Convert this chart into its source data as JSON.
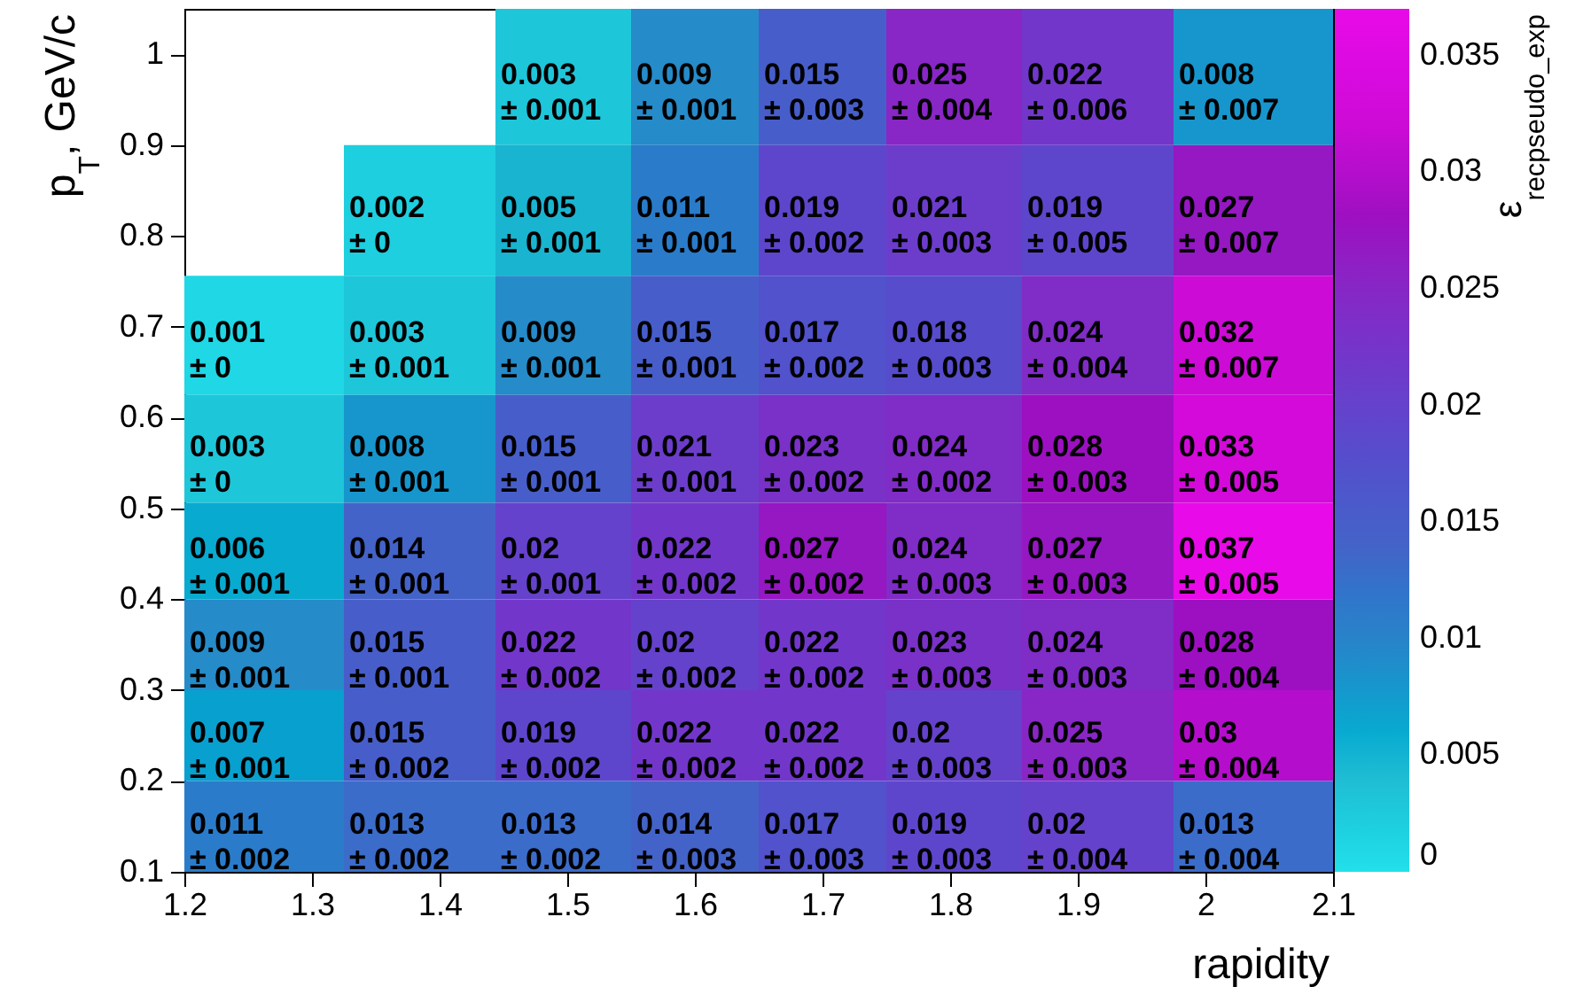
{
  "chart_data": {
    "type": "heatmap",
    "xlabel": "rapidity",
    "ylabel": "p$_{T}$, GeV/c",
    "clabel": "ε$_{rec}$$_{pseudo_exp}$",
    "x": [
      1.2625,
      1.3875,
      1.5,
      1.6,
      1.7,
      1.8,
      1.9125,
      2.0375
    ],
    "y": [
      0.975,
      0.825,
      0.6875,
      0.5625,
      0.45,
      0.35,
      0.25,
      0.15
    ],
    "xlim": [
      1.2,
      2.1
    ],
    "xticks": [
      1.2,
      1.3,
      1.4,
      1.5,
      1.6,
      1.7,
      1.8,
      1.9,
      2,
      2.1
    ],
    "ylim": [
      0.1,
      1.05
    ],
    "yticks": [
      0.1,
      0.2,
      0.3,
      0.4,
      0.5,
      0.6,
      0.7,
      0.8,
      0.9,
      1
    ],
    "clim": [
      0,
      0.037
    ],
    "cticks": [
      0,
      0.005,
      0.01,
      0.015,
      0.02,
      0.025,
      0.03,
      0.035
    ],
    "colors": [
      "#22e0ea",
      "#20b8d0",
      "#2a88c8",
      "#4464c8",
      "#5a48cc",
      "#7a30c8",
      "#9a10c0",
      "#d00ad8",
      "#e80ae8"
    ],
    "cells": [
      [
        null,
        null,
        0.003,
        0.009,
        0.015,
        0.025,
        0.022,
        0.008
      ],
      [
        null,
        0.002,
        0.005,
        0.011,
        0.019,
        0.021,
        0.019,
        0.027
      ],
      [
        0.001,
        0.003,
        0.009,
        0.015,
        0.017,
        0.018,
        0.024,
        0.032
      ],
      [
        0.003,
        0.008,
        0.015,
        0.021,
        0.023,
        0.024,
        0.028,
        0.033
      ],
      [
        0.006,
        0.014,
        0.02,
        0.022,
        0.027,
        0.024,
        0.027,
        0.037
      ],
      [
        0.009,
        0.015,
        0.022,
        0.02,
        0.022,
        0.023,
        0.024,
        0.028
      ],
      [
        0.007,
        0.015,
        0.019,
        0.022,
        0.022,
        0.02,
        0.025,
        0.03
      ],
      [
        0.011,
        0.013,
        0.013,
        0.014,
        0.017,
        0.019,
        0.02,
        0.013
      ]
    ],
    "cell_labels": [
      [
        null,
        null,
        "0.003\n± 0.001",
        "0.009\n± 0.001",
        "0.015\n± 0.003",
        "0.025\n± 0.004",
        "0.022\n± 0.006",
        "0.008\n± 0.007"
      ],
      [
        null,
        "0.002\n± 0",
        "0.005\n± 0.001",
        "0.011\n± 0.001",
        "0.019\n± 0.002",
        "0.021\n± 0.003",
        "0.019\n± 0.005",
        "0.027\n± 0.007"
      ],
      [
        "0.001\n± 0",
        "0.003\n± 0.001",
        "0.009\n± 0.001",
        "0.015\n± 0.001",
        "0.017\n± 0.002",
        "0.018\n± 0.003",
        "0.024\n± 0.004",
        "0.032\n± 0.007"
      ],
      [
        "0.003\n± 0",
        "0.008\n± 0.001",
        "0.015\n± 0.001",
        "0.021\n± 0.001",
        "0.023\n± 0.002",
        "0.024\n± 0.002",
        "0.028\n± 0.003",
        "0.033\n± 0.005"
      ],
      [
        "0.006\n± 0.001",
        "0.014\n± 0.001",
        "0.02\n± 0.001",
        "0.022\n± 0.002",
        "0.027\n± 0.002",
        "0.024\n± 0.003",
        "0.027\n± 0.003",
        "0.037\n± 0.005"
      ],
      [
        "0.009\n± 0.001",
        "0.015\n± 0.001",
        "0.022\n± 0.002",
        "0.02\n± 0.002",
        "0.022\n± 0.002",
        "0.023\n± 0.003",
        "0.024\n± 0.003",
        "0.028\n± 0.004"
      ],
      [
        "0.007\n± 0.001",
        "0.015\n± 0.002",
        "0.019\n± 0.002",
        "0.022\n± 0.002",
        "0.022\n± 0.002",
        "0.02\n± 0.003",
        "0.025\n± 0.003",
        "0.03\n± 0.004"
      ],
      [
        "0.011\n± 0.002",
        "0.013\n± 0.002",
        "0.013\n± 0.002",
        "0.014\n± 0.003",
        "0.017\n± 0.003",
        "0.019\n± 0.003",
        "0.02\n± 0.004",
        "0.013\n± 0.004"
      ]
    ]
  }
}
